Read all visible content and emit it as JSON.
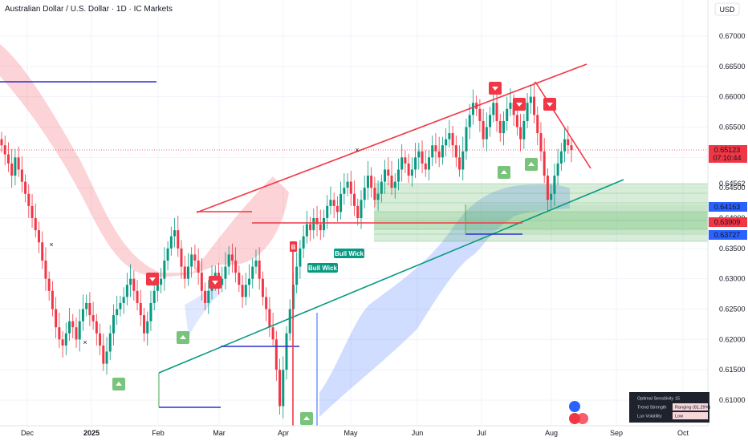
{
  "header": {
    "title": "Australian Dollar / U.S. Dollar · 1D · IC Markets",
    "currency": "USD"
  },
  "colors": {
    "up": "#089981",
    "down": "#f23645",
    "grid": "#f0f3fa",
    "blue_line": "#2a2ecd",
    "green_line": "#089981",
    "red_line": "#f23645"
  },
  "chart_data": {
    "type": "candlestick",
    "title": "Australian Dollar / U.S. Dollar · 1D · IC Markets",
    "ylim": [
      0.606,
      0.674
    ],
    "y_ticks": [
      "0.67000",
      "0.66500",
      "0.66000",
      "0.65500",
      "0.65000",
      "0.64500",
      "0.64000",
      "0.63500",
      "0.63000",
      "0.62500",
      "0.62000",
      "0.61500",
      "0.61000"
    ],
    "x_ticks": [
      "Dec",
      "2025",
      "Feb",
      "Mar",
      "Apr",
      "May",
      "Jun",
      "Jul",
      "Aug",
      "Sep",
      "Oct"
    ],
    "last_price": "0.65123",
    "countdown": "07:10:44",
    "price_tags": [
      {
        "value": "0.64562",
        "style": "plain"
      },
      {
        "value": "0.64163",
        "style": "blue"
      },
      {
        "value": "0.63909",
        "style": "red"
      },
      {
        "value": "0.63727",
        "style": "blue"
      }
    ],
    "closes": [
      0.652,
      0.6505,
      0.649,
      0.647,
      0.65,
      0.648,
      0.646,
      0.644,
      0.642,
      0.64,
      0.638,
      0.636,
      0.633,
      0.63,
      0.628,
      0.625,
      0.622,
      0.62,
      0.619,
      0.621,
      0.623,
      0.622,
      0.62,
      0.623,
      0.625,
      0.626,
      0.624,
      0.623,
      0.621,
      0.619,
      0.616,
      0.618,
      0.621,
      0.624,
      0.625,
      0.626,
      0.627,
      0.629,
      0.63,
      0.628,
      0.626,
      0.624,
      0.621,
      0.623,
      0.626,
      0.628,
      0.629,
      0.63,
      0.633,
      0.635,
      0.637,
      0.638,
      0.635,
      0.632,
      0.63,
      0.632,
      0.634,
      0.633,
      0.631,
      0.628,
      0.626,
      0.628,
      0.63,
      0.631,
      0.629,
      0.63,
      0.632,
      0.634,
      0.633,
      0.631,
      0.629,
      0.627,
      0.629,
      0.63,
      0.632,
      0.633,
      0.63,
      0.627,
      0.625,
      0.622,
      0.62,
      0.615,
      0.609,
      0.615,
      0.621,
      0.625,
      0.629,
      0.632,
      0.635,
      0.637,
      0.639,
      0.638,
      0.64,
      0.639,
      0.638,
      0.64,
      0.642,
      0.643,
      0.642,
      0.641,
      0.644,
      0.645,
      0.646,
      0.644,
      0.642,
      0.64,
      0.643,
      0.645,
      0.647,
      0.645,
      0.643,
      0.644,
      0.646,
      0.648,
      0.647,
      0.645,
      0.646,
      0.648,
      0.65,
      0.649,
      0.647,
      0.648,
      0.65,
      0.651,
      0.649,
      0.648,
      0.65,
      0.652,
      0.651,
      0.65,
      0.652,
      0.653,
      0.654,
      0.652,
      0.65,
      0.648,
      0.651,
      0.655,
      0.657,
      0.659,
      0.658,
      0.656,
      0.653,
      0.655,
      0.657,
      0.659,
      0.656,
      0.654,
      0.656,
      0.658,
      0.659,
      0.657,
      0.655,
      0.653,
      0.656,
      0.659,
      0.66,
      0.657,
      0.654,
      0.651,
      0.647,
      0.643,
      0.644,
      0.647,
      0.649,
      0.651,
      0.653,
      0.652,
      0.6512
    ],
    "series": [
      {
        "name": "Bull Wick",
        "kind": "label"
      }
    ],
    "labels": [
      {
        "text": "Bull Wick",
        "date_index": 100
      },
      {
        "text": "Bull Wick",
        "date_index": 86
      }
    ]
  },
  "panel": {
    "rows": [
      {
        "label": "Optimal Sensitivity",
        "value": "15"
      },
      {
        "label": "Trend Strength",
        "value": "Ranging (81.29%)"
      },
      {
        "label": "Lux Volatility",
        "value": "Low"
      }
    ]
  }
}
